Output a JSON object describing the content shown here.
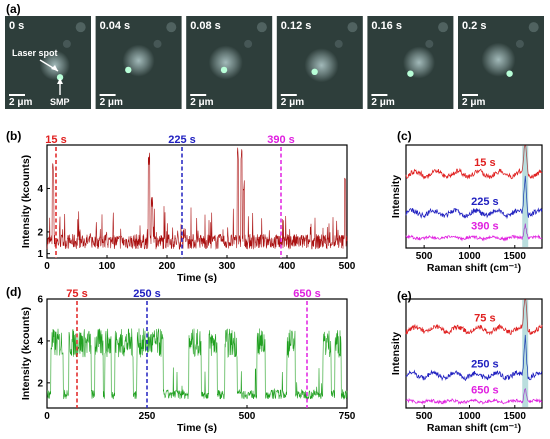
{
  "panels": {
    "a": {
      "letter": "(a)"
    },
    "b": {
      "letter": "(b)"
    },
    "c": {
      "letter": "(c)"
    },
    "d": {
      "letter": "(d)"
    },
    "e": {
      "letter": "(e)"
    }
  },
  "microscopy": {
    "frames": [
      {
        "time": "0 s",
        "scale": "2 μm"
      },
      {
        "time": "0.04 s",
        "scale": "2 μm"
      },
      {
        "time": "0.08 s",
        "scale": "2 μm"
      },
      {
        "time": "0.12 s",
        "scale": "2 μm"
      },
      {
        "time": "0.16 s",
        "scale": "2 μm"
      },
      {
        "time": "0.2 s",
        "scale": "2 μm"
      }
    ],
    "annotations": {
      "laser_spot": "Laser spot",
      "smp": "SMP"
    },
    "colors": {
      "background": "#2e3e3b",
      "glow": "#a8c0c0",
      "laser": "#b8ffd8"
    }
  },
  "chart_data": [
    {
      "panel": "b",
      "type": "line",
      "xlabel": "Time (s)",
      "ylabel": "Intensity (kcounts)",
      "xlim": [
        0,
        500
      ],
      "ylim": [
        0.8,
        6.0
      ],
      "xticks": [
        0,
        100,
        200,
        300,
        400,
        500
      ],
      "yticks": [
        1,
        2,
        4
      ],
      "color": "#aa1010",
      "markers": [
        {
          "label": "15 s",
          "x": 15,
          "color": "#e02020"
        },
        {
          "label": "225 s",
          "x": 225,
          "color": "#2020c0"
        },
        {
          "label": "390 s",
          "x": 390,
          "color": "#e020e0"
        }
      ],
      "spikes": [
        [
          10,
          5.2
        ],
        [
          170,
          5.7
        ],
        [
          175,
          3.6
        ],
        [
          318,
          6.0
        ],
        [
          324,
          5.9
        ],
        [
          328,
          4.4
        ],
        [
          497,
          5.1
        ]
      ]
    },
    {
      "panel": "c",
      "type": "line",
      "xlabel": "Raman shift (cm⁻¹)",
      "ylabel": "Intensity",
      "xlim": [
        300,
        1800
      ],
      "xticks": [
        500,
        1000,
        1500
      ],
      "series": [
        {
          "name": "15 s",
          "color": "#e02020",
          "offset": 0.72,
          "peak": 1615
        },
        {
          "name": "225 s",
          "color": "#2020c0",
          "offset": 0.34,
          "peak": 1615
        },
        {
          "name": "390 s",
          "color": "#e020e0",
          "offset": 0.1,
          "peak": 1615
        }
      ]
    },
    {
      "panel": "d",
      "type": "line",
      "xlabel": "Time (s)",
      "ylabel": "Intensity (kcounts)",
      "xlim": [
        0,
        750
      ],
      "ylim": [
        0.8,
        6.0
      ],
      "xticks": [
        0,
        250,
        500,
        750
      ],
      "yticks": [
        2,
        4,
        6
      ],
      "color": "#20a020",
      "markers": [
        {
          "label": "75 s",
          "x": 75,
          "color": "#e02020"
        },
        {
          "label": "250 s",
          "x": 250,
          "color": "#2020c0"
        },
        {
          "label": "650 s",
          "x": 650,
          "color": "#e020e0"
        }
      ],
      "high_segments": [
        [
          10,
          40
        ],
        [
          55,
          110
        ],
        [
          120,
          140
        ],
        [
          145,
          160
        ],
        [
          170,
          215
        ],
        [
          225,
          290
        ],
        [
          355,
          385
        ],
        [
          405,
          425
        ],
        [
          445,
          475
        ],
        [
          525,
          545
        ],
        [
          600,
          620
        ],
        [
          690,
          710
        ],
        [
          720,
          735
        ]
      ]
    },
    {
      "panel": "e",
      "type": "line",
      "xlabel": "Raman shift (cm⁻¹)",
      "ylabel": "Intensity",
      "xlim": [
        300,
        1800
      ],
      "xticks": [
        500,
        1000,
        1500
      ],
      "series": [
        {
          "name": "75 s",
          "color": "#e02020",
          "offset": 0.72,
          "peak": 1615
        },
        {
          "name": "250 s",
          "color": "#2020c0",
          "offset": 0.3,
          "peak": 1615
        },
        {
          "name": "650 s",
          "color": "#e020e0",
          "offset": 0.06,
          "peak": 1615
        }
      ]
    }
  ]
}
